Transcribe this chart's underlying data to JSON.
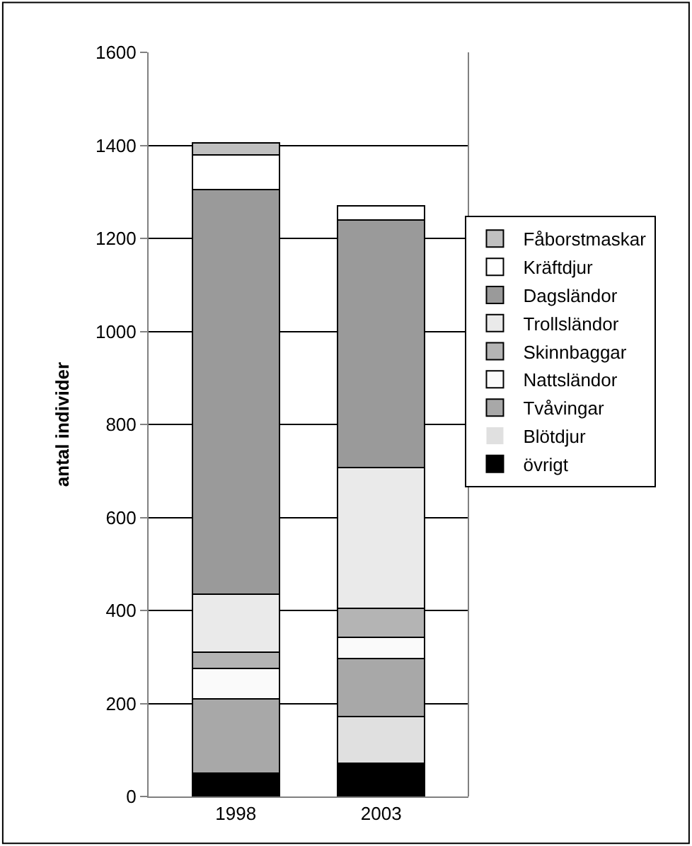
{
  "chart_data": {
    "type": "bar",
    "stacked": true,
    "ylabel": "antal individer",
    "categories": [
      "1998",
      "2003"
    ],
    "series": [
      {
        "name": "övrigt",
        "color": "#000000",
        "values": [
          50,
          72
        ]
      },
      {
        "name": "Blötdjur",
        "color": "#e0e0e0",
        "values": [
          0,
          100
        ]
      },
      {
        "name": "Tvåvingar",
        "color": "#a8a8a8",
        "values": [
          160,
          125
        ]
      },
      {
        "name": "Nattsländor",
        "color": "#fafafa",
        "values": [
          65,
          45
        ]
      },
      {
        "name": "Skinnbaggar",
        "color": "#b4b4b4",
        "values": [
          35,
          63
        ]
      },
      {
        "name": "Trollsländor",
        "color": "#eaeaea",
        "values": [
          125,
          303
        ]
      },
      {
        "name": "Dagsländor",
        "color": "#9a9a9a",
        "values": [
          870,
          532
        ]
      },
      {
        "name": "Kräftdjur",
        "color": "#ffffff",
        "values": [
          75,
          30
        ]
      },
      {
        "name": "Fåborstmaskar",
        "color": "#c0c0c0",
        "values": [
          25,
          0
        ]
      }
    ],
    "ylim": [
      0,
      1600
    ],
    "yticks": [
      0,
      200,
      400,
      600,
      800,
      1000,
      1200,
      1400,
      1600
    ],
    "grid": "y",
    "legend": "right"
  }
}
